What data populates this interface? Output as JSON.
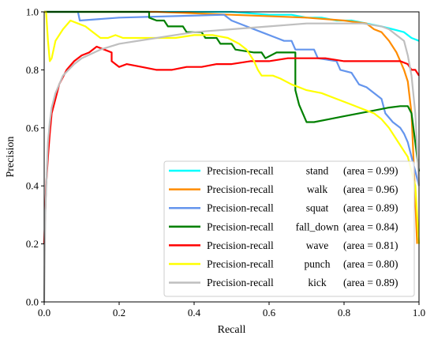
{
  "chart_data": {
    "type": "line",
    "xlabel": "Recall",
    "ylabel": "Precision",
    "xlim": [
      0.0,
      1.0
    ],
    "ylim": [
      0.0,
      1.0
    ],
    "xticks": [
      "0.0",
      "0.2",
      "0.4",
      "0.6",
      "0.8",
      "1.0"
    ],
    "yticks": [
      "0.0",
      "0.2",
      "0.4",
      "0.6",
      "0.8",
      "1.0"
    ],
    "grid": false,
    "legend_position": "bottom-right",
    "series": [
      {
        "name": "Precision-recall",
        "class_label": "stand",
        "area_label": "(area = 0.99)",
        "color": "#00ffff",
        "points": [
          [
            0.0,
            1.0
          ],
          [
            0.5,
            1.0
          ],
          [
            0.6,
            0.99
          ],
          [
            0.66,
            0.99
          ],
          [
            0.7,
            0.98
          ],
          [
            0.74,
            0.98
          ],
          [
            0.78,
            0.97
          ],
          [
            0.82,
            0.97
          ],
          [
            0.86,
            0.96
          ],
          [
            0.9,
            0.95
          ],
          [
            0.93,
            0.94
          ],
          [
            0.96,
            0.93
          ],
          [
            0.98,
            0.91
          ],
          [
            1.0,
            0.9
          ]
        ]
      },
      {
        "name": "Precision-recall",
        "class_label": "walk",
        "area_label": "(area = 0.96)",
        "color": "#ff8c00",
        "points": [
          [
            0.0,
            1.0
          ],
          [
            0.3,
            1.0
          ],
          [
            0.5,
            0.99
          ],
          [
            0.7,
            0.98
          ],
          [
            0.8,
            0.97
          ],
          [
            0.86,
            0.96
          ],
          [
            0.88,
            0.94
          ],
          [
            0.9,
            0.93
          ],
          [
            0.92,
            0.9
          ],
          [
            0.94,
            0.86
          ],
          [
            0.95,
            0.83
          ],
          [
            0.96,
            0.8
          ],
          [
            0.97,
            0.76
          ],
          [
            0.98,
            0.65
          ],
          [
            0.985,
            0.5
          ],
          [
            0.99,
            0.35
          ],
          [
            0.995,
            0.2
          ]
        ]
      },
      {
        "name": "Precision-recall",
        "class_label": "squat",
        "area_label": "(area = 0.89)",
        "color": "#6495ed",
        "points": [
          [
            0.0,
            1.0
          ],
          [
            0.09,
            1.0
          ],
          [
            0.095,
            0.97
          ],
          [
            0.2,
            0.98
          ],
          [
            0.48,
            0.99
          ],
          [
            0.5,
            0.97
          ],
          [
            0.54,
            0.95
          ],
          [
            0.58,
            0.93
          ],
          [
            0.62,
            0.91
          ],
          [
            0.64,
            0.9
          ],
          [
            0.66,
            0.9
          ],
          [
            0.67,
            0.87
          ],
          [
            0.72,
            0.87
          ],
          [
            0.73,
            0.84
          ],
          [
            0.78,
            0.83
          ],
          [
            0.79,
            0.8
          ],
          [
            0.82,
            0.79
          ],
          [
            0.84,
            0.75
          ],
          [
            0.86,
            0.74
          ],
          [
            0.88,
            0.72
          ],
          [
            0.9,
            0.7
          ],
          [
            0.91,
            0.65
          ],
          [
            0.93,
            0.62
          ],
          [
            0.95,
            0.6
          ],
          [
            0.96,
            0.58
          ],
          [
            0.97,
            0.55
          ],
          [
            0.98,
            0.5
          ],
          [
            0.99,
            0.45
          ],
          [
            1.0,
            0.4
          ]
        ]
      },
      {
        "name": "Precision-recall",
        "class_label": "fall_down",
        "area_label": "(area = 0.84)",
        "color": "#008000",
        "points": [
          [
            0.0,
            1.0
          ],
          [
            0.28,
            1.0
          ],
          [
            0.28,
            0.98
          ],
          [
            0.3,
            0.97
          ],
          [
            0.32,
            0.97
          ],
          [
            0.33,
            0.95
          ],
          [
            0.37,
            0.95
          ],
          [
            0.38,
            0.93
          ],
          [
            0.42,
            0.93
          ],
          [
            0.43,
            0.91
          ],
          [
            0.46,
            0.91
          ],
          [
            0.47,
            0.89
          ],
          [
            0.5,
            0.89
          ],
          [
            0.51,
            0.87
          ],
          [
            0.56,
            0.86
          ],
          [
            0.58,
            0.86
          ],
          [
            0.59,
            0.84
          ],
          [
            0.62,
            0.86
          ],
          [
            0.67,
            0.86
          ],
          [
            0.67,
            0.73
          ],
          [
            0.68,
            0.68
          ],
          [
            0.7,
            0.62
          ],
          [
            0.72,
            0.62
          ],
          [
            0.76,
            0.63
          ],
          [
            0.8,
            0.64
          ],
          [
            0.84,
            0.65
          ],
          [
            0.88,
            0.66
          ],
          [
            0.92,
            0.67
          ],
          [
            0.95,
            0.675
          ],
          [
            0.97,
            0.675
          ],
          [
            0.98,
            0.65
          ],
          [
            0.99,
            0.55
          ],
          [
            1.0,
            0.45
          ]
        ]
      },
      {
        "name": "Precision-recall",
        "class_label": "wave",
        "area_label": "(area = 0.81)",
        "color": "#ff0000",
        "points": [
          [
            0.0,
            0.2
          ],
          [
            0.005,
            0.4
          ],
          [
            0.01,
            0.5
          ],
          [
            0.015,
            0.58
          ],
          [
            0.02,
            0.65
          ],
          [
            0.03,
            0.7
          ],
          [
            0.04,
            0.75
          ],
          [
            0.06,
            0.8
          ],
          [
            0.08,
            0.83
          ],
          [
            0.1,
            0.85
          ],
          [
            0.12,
            0.86
          ],
          [
            0.14,
            0.88
          ],
          [
            0.16,
            0.87
          ],
          [
            0.18,
            0.86
          ],
          [
            0.18,
            0.83
          ],
          [
            0.2,
            0.81
          ],
          [
            0.22,
            0.82
          ],
          [
            0.26,
            0.81
          ],
          [
            0.3,
            0.8
          ],
          [
            0.34,
            0.8
          ],
          [
            0.38,
            0.81
          ],
          [
            0.42,
            0.81
          ],
          [
            0.46,
            0.82
          ],
          [
            0.5,
            0.82
          ],
          [
            0.55,
            0.83
          ],
          [
            0.6,
            0.83
          ],
          [
            0.65,
            0.84
          ],
          [
            0.7,
            0.84
          ],
          [
            0.75,
            0.84
          ],
          [
            0.8,
            0.83
          ],
          [
            0.85,
            0.83
          ],
          [
            0.9,
            0.83
          ],
          [
            0.95,
            0.83
          ],
          [
            0.97,
            0.82
          ],
          [
            0.98,
            0.8
          ],
          [
            0.99,
            0.8
          ],
          [
            1.0,
            0.78
          ]
        ]
      },
      {
        "name": "Precision-recall",
        "class_label": "punch",
        "area_label": "(area = 0.80)",
        "color": "#ffff00",
        "points": [
          [
            0.0,
            1.0
          ],
          [
            0.005,
            1.0
          ],
          [
            0.01,
            0.9
          ],
          [
            0.015,
            0.83
          ],
          [
            0.02,
            0.84
          ],
          [
            0.03,
            0.9
          ],
          [
            0.05,
            0.94
          ],
          [
            0.07,
            0.97
          ],
          [
            0.09,
            0.96
          ],
          [
            0.11,
            0.95
          ],
          [
            0.13,
            0.93
          ],
          [
            0.15,
            0.91
          ],
          [
            0.17,
            0.91
          ],
          [
            0.19,
            0.92
          ],
          [
            0.21,
            0.91
          ],
          [
            0.25,
            0.91
          ],
          [
            0.3,
            0.91
          ],
          [
            0.35,
            0.91
          ],
          [
            0.4,
            0.92
          ],
          [
            0.45,
            0.92
          ],
          [
            0.49,
            0.91
          ],
          [
            0.52,
            0.89
          ],
          [
            0.54,
            0.87
          ],
          [
            0.56,
            0.83
          ],
          [
            0.57,
            0.8
          ],
          [
            0.58,
            0.78
          ],
          [
            0.61,
            0.78
          ],
          [
            0.63,
            0.77
          ],
          [
            0.66,
            0.75
          ],
          [
            0.7,
            0.73
          ],
          [
            0.74,
            0.72
          ],
          [
            0.78,
            0.7
          ],
          [
            0.82,
            0.68
          ],
          [
            0.86,
            0.66
          ],
          [
            0.88,
            0.65
          ],
          [
            0.9,
            0.63
          ],
          [
            0.92,
            0.6
          ],
          [
            0.94,
            0.56
          ],
          [
            0.96,
            0.52
          ],
          [
            0.97,
            0.5
          ],
          [
            0.98,
            0.45
          ],
          [
            0.99,
            0.4
          ],
          [
            1.0,
            0.2
          ]
        ]
      },
      {
        "name": "Precision-recall",
        "class_label": "kick",
        "area_label": "(area = 0.89)",
        "color": "#bfbfbf",
        "points": [
          [
            0.0,
            0.0
          ],
          [
            0.003,
            0.3
          ],
          [
            0.007,
            0.45
          ],
          [
            0.01,
            0.55
          ],
          [
            0.015,
            0.62
          ],
          [
            0.02,
            0.67
          ],
          [
            0.03,
            0.72
          ],
          [
            0.05,
            0.78
          ],
          [
            0.08,
            0.82
          ],
          [
            0.1,
            0.84
          ],
          [
            0.15,
            0.87
          ],
          [
            0.2,
            0.89
          ],
          [
            0.3,
            0.91
          ],
          [
            0.4,
            0.93
          ],
          [
            0.5,
            0.94
          ],
          [
            0.6,
            0.95
          ],
          [
            0.7,
            0.96
          ],
          [
            0.8,
            0.96
          ],
          [
            0.85,
            0.96
          ],
          [
            0.9,
            0.95
          ],
          [
            0.92,
            0.94
          ],
          [
            0.94,
            0.92
          ],
          [
            0.96,
            0.9
          ],
          [
            0.97,
            0.85
          ],
          [
            0.98,
            0.78
          ],
          [
            0.99,
            0.65
          ],
          [
            1.0,
            0.4
          ]
        ]
      }
    ]
  }
}
